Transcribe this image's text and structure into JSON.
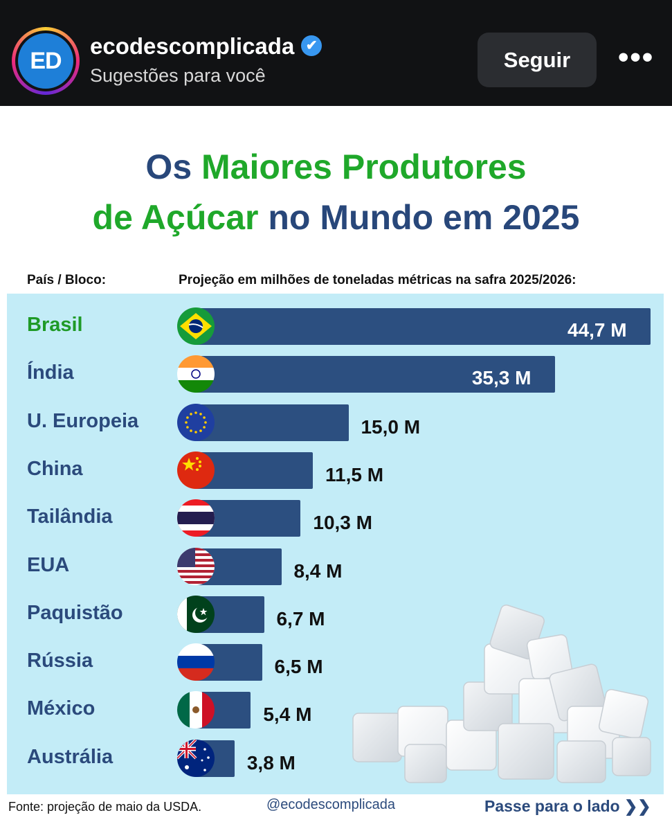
{
  "header": {
    "avatar_text": "ED",
    "username": "ecodescomplicada",
    "subtext": "Sugestões para você",
    "follow_label": "Seguir",
    "more_label": "•••"
  },
  "post": {
    "title_line1_a": "Os ",
    "title_line1_b": "Maiores Produtores",
    "title_line2_a": "de Açúcar",
    "title_line2_b": " no Mundo em 2025",
    "col_country": "País / Bloco:",
    "col_values": "Projeção em milhões de toneladas métricas na safra 2025/2026:",
    "source": "Fonte: projeção de maio da USDA.",
    "handle": "@ecodescomplicada",
    "next": "Passe para o lado ❯❯"
  },
  "colors": {
    "bar": "#2c4f80",
    "accent_green": "#1fa82a",
    "navy": "#28477a",
    "panel": "#c3ecf7"
  },
  "chart_data": {
    "type": "bar",
    "orientation": "horizontal",
    "categories": [
      "Brasil",
      "Índia",
      "U. Europeia",
      "China",
      "Tailândia",
      "EUA",
      "Paquistão",
      "Rússia",
      "México",
      "Austrália"
    ],
    "values": [
      44.7,
      35.3,
      15.0,
      11.5,
      10.3,
      8.4,
      6.7,
      6.5,
      5.4,
      3.8
    ],
    "labels": [
      "44,7 M",
      "35,3 M",
      "15,0 M",
      "11,5 M",
      "10,3 M",
      "8,4 M",
      "6,7 M",
      "6,5 M",
      "5,4 M",
      "3,8 M"
    ],
    "flags": [
      "brazil-flag-icon",
      "india-flag-icon",
      "eu-flag-icon",
      "china-flag-icon",
      "thailand-flag-icon",
      "usa-flag-icon",
      "pakistan-flag-icon",
      "russia-flag-icon",
      "mexico-flag-icon",
      "australia-flag-icon"
    ],
    "title": "Os Maiores Produtores de Açúcar no Mundo em 2025",
    "xlabel": "Projeção em milhões de toneladas métricas na safra 2025/2026:",
    "ylabel": "País / Bloco:",
    "highlight": "Brasil"
  }
}
